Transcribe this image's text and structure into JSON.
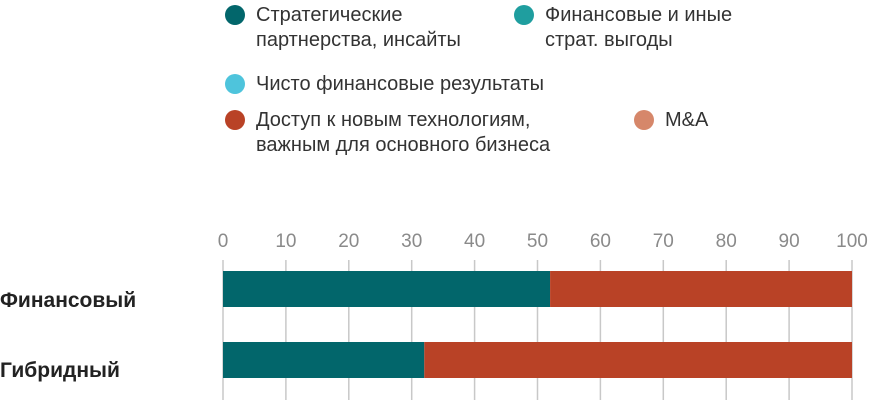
{
  "chart_data": {
    "type": "bar",
    "orientation": "horizontal",
    "stacked": true,
    "legend_placement": "top",
    "categories": [
      "Финансовый",
      "Гибридный"
    ],
    "series": [
      {
        "name": "Стратегические\nпартнерства, инсайты",
        "color": "#02666b",
        "values": [
          52,
          32
        ]
      },
      {
        "name": "Финансовые и иные\nстрат. выгоды",
        "color": "#1f9e9f",
        "values": [
          0,
          0
        ]
      },
      {
        "name": "Чисто финансовые результаты",
        "color": "#4ec4dc",
        "values": [
          0,
          0
        ]
      },
      {
        "name": "Доступ к новым технологиям,\nважным для основного бизнеса",
        "color": "#b94226",
        "values": [
          48,
          68
        ]
      },
      {
        "name": "M&A",
        "color": "#d6876a",
        "values": [
          0,
          0
        ]
      }
    ],
    "xlim": [
      0,
      100
    ],
    "xticks": [
      "0",
      "10",
      "20",
      "30",
      "40",
      "50",
      "60",
      "70",
      "80",
      "90",
      "100"
    ],
    "grid": true
  }
}
